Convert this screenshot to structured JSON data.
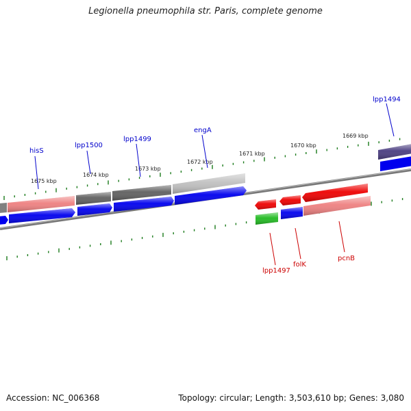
{
  "title": "Legionella pneumophila str. Paris, complete genome",
  "footer": {
    "accession": "Accession: NC_006368",
    "topology": "Topology: circular; Length: 3,503,610 bp; Genes: 3,080"
  },
  "scale_labels": [
    "1675 kbp",
    "1674 kbp",
    "1673 kbp",
    "1672 kbp",
    "1671 kbp",
    "1670 kbp",
    "1669 kbp"
  ],
  "gene_labels_forward": [
    "hisS",
    "lpp1500",
    "lpp1499",
    "engA",
    "lpp1494"
  ],
  "gene_labels_reverse": [
    "lpp1497",
    "folK",
    "pcnB"
  ],
  "colors": {
    "forward_label": "#0000cc",
    "reverse_label": "#cc0000",
    "cds_blue": "#0000ee",
    "tick_green": "#1a7a1a",
    "backbone": "#808080",
    "gene_red": "#ee0000",
    "gene_pink": "#ee8080",
    "gene_gray_dark": "#606060",
    "gene_gray_light": "#c0c0c0",
    "gene_green": "#22bb22",
    "gene_purple": "#4a3d80"
  }
}
